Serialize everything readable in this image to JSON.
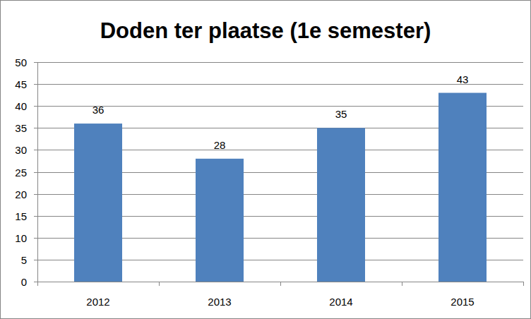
{
  "chart_data": {
    "type": "bar",
    "title": "Doden ter plaatse (1e semester)",
    "categories": [
      "2012",
      "2013",
      "2014",
      "2015"
    ],
    "values": [
      36,
      28,
      35,
      43
    ],
    "color": "#4f81bd",
    "ylim": [
      0,
      50
    ],
    "yticks": [
      0,
      5,
      10,
      15,
      20,
      25,
      30,
      35,
      40,
      45,
      50
    ],
    "grid": true,
    "data_labels": true
  }
}
